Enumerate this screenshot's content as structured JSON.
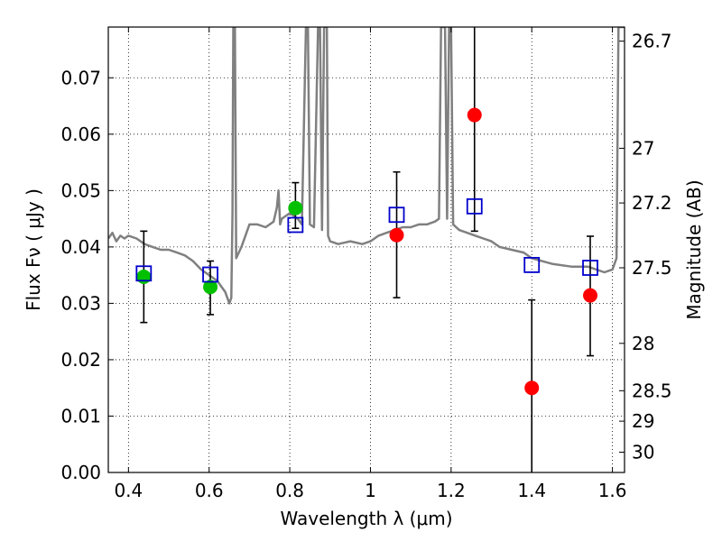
{
  "chart_data": {
    "type": "scatter",
    "xlabel": "Wavelength  λ (μm)",
    "ylabel": "Flux  Fν  ( μJy )",
    "ylabel_right": "Magnitude (AB)",
    "xlim": [
      0.35,
      1.63
    ],
    "ylim": [
      0.0,
      0.079
    ],
    "grid": true,
    "x_ticks": [
      0.4,
      0.6,
      0.8,
      1.0,
      1.2,
      1.4,
      1.6
    ],
    "x_tick_labels": [
      "0.4",
      "0.6",
      "0.8",
      "1",
      "1.2",
      "1.4",
      "1.6"
    ],
    "y_ticks": [
      0.0,
      0.01,
      0.02,
      0.03,
      0.04,
      0.05,
      0.06,
      0.07
    ],
    "y_tick_labels": [
      "0.00",
      "0.01",
      "0.02",
      "0.03",
      "0.04",
      "0.05",
      "0.06",
      "0.07"
    ],
    "mag_ticks": [
      {
        "label": "26.7",
        "flux": 0.0765
      },
      {
        "label": "27",
        "flux": 0.0575
      },
      {
        "label": "27.2",
        "flux": 0.0478
      },
      {
        "label": "27.5",
        "flux": 0.0363
      },
      {
        "label": "28",
        "flux": 0.0229
      },
      {
        "label": "28.5",
        "flux": 0.0145
      },
      {
        "label": "29",
        "flux": 0.0091
      },
      {
        "label": "30",
        "flux": 0.0036
      }
    ],
    "series": [
      {
        "kind": "line",
        "color": "#808080",
        "points": [
          [
            0.35,
            0.0415
          ],
          [
            0.36,
            0.0425
          ],
          [
            0.37,
            0.041
          ],
          [
            0.38,
            0.042
          ],
          [
            0.39,
            0.0415
          ],
          [
            0.4,
            0.042
          ],
          [
            0.42,
            0.0415
          ],
          [
            0.44,
            0.0405
          ],
          [
            0.46,
            0.04
          ],
          [
            0.48,
            0.0395
          ],
          [
            0.5,
            0.0395
          ],
          [
            0.52,
            0.039
          ],
          [
            0.54,
            0.0385
          ],
          [
            0.56,
            0.0375
          ],
          [
            0.58,
            0.036
          ],
          [
            0.6,
            0.035
          ],
          [
            0.62,
            0.034
          ],
          [
            0.63,
            0.033
          ],
          [
            0.64,
            0.032
          ],
          [
            0.65,
            0.03
          ],
          [
            0.655,
            0.031
          ],
          [
            0.658,
            0.046
          ],
          [
            0.66,
            0.079
          ],
          [
            0.664,
            0.079
          ],
          [
            0.667,
            0.038
          ],
          [
            0.68,
            0.04
          ],
          [
            0.7,
            0.044
          ],
          [
            0.72,
            0.044
          ],
          [
            0.74,
            0.0435
          ],
          [
            0.75,
            0.044
          ],
          [
            0.76,
            0.0445
          ],
          [
            0.768,
            0.047
          ],
          [
            0.772,
            0.05
          ],
          [
            0.776,
            0.044
          ],
          [
            0.78,
            0.045
          ],
          [
            0.8,
            0.046
          ],
          [
            0.82,
            0.045
          ],
          [
            0.83,
            0.044
          ],
          [
            0.84,
            0.079
          ],
          [
            0.845,
            0.079
          ],
          [
            0.85,
            0.044
          ],
          [
            0.86,
            0.0435
          ],
          [
            0.87,
            0.079
          ],
          [
            0.875,
            0.079
          ],
          [
            0.88,
            0.043
          ],
          [
            0.885,
            0.079
          ],
          [
            0.892,
            0.079
          ],
          [
            0.895,
            0.042
          ],
          [
            0.9,
            0.041
          ],
          [
            0.92,
            0.0405
          ],
          [
            0.95,
            0.041
          ],
          [
            0.98,
            0.0405
          ],
          [
            1.0,
            0.041
          ],
          [
            1.02,
            0.042
          ],
          [
            1.04,
            0.0425
          ],
          [
            1.06,
            0.043
          ],
          [
            1.08,
            0.0435
          ],
          [
            1.1,
            0.0435
          ],
          [
            1.12,
            0.044
          ],
          [
            1.14,
            0.044
          ],
          [
            1.16,
            0.0445
          ],
          [
            1.17,
            0.045
          ],
          [
            1.175,
            0.079
          ],
          [
            1.185,
            0.079
          ],
          [
            1.19,
            0.045
          ],
          [
            1.195,
            0.079
          ],
          [
            1.2,
            0.079
          ],
          [
            1.205,
            0.044
          ],
          [
            1.22,
            0.043
          ],
          [
            1.24,
            0.0425
          ],
          [
            1.26,
            0.042
          ],
          [
            1.28,
            0.0415
          ],
          [
            1.3,
            0.041
          ],
          [
            1.32,
            0.04
          ],
          [
            1.35,
            0.0395
          ],
          [
            1.38,
            0.039
          ],
          [
            1.4,
            0.038
          ],
          [
            1.45,
            0.037
          ],
          [
            1.5,
            0.0365
          ],
          [
            1.52,
            0.0365
          ],
          [
            1.54,
            0.0365
          ],
          [
            1.56,
            0.036
          ],
          [
            1.58,
            0.0355
          ],
          [
            1.6,
            0.036
          ],
          [
            1.61,
            0.038
          ],
          [
            1.615,
            0.079
          ],
          [
            1.62,
            0.079
          ],
          [
            1.63,
            0.079
          ]
        ]
      },
      {
        "kind": "scatter",
        "marker": "circle",
        "color": "#00c000",
        "points": [
          [
            0.438,
            0.0347
          ],
          [
            0.603,
            0.0329
          ],
          [
            0.814,
            0.0469
          ]
        ]
      },
      {
        "kind": "scatter",
        "marker": "circle",
        "color": "#ff0000",
        "points": [
          [
            1.065,
            0.0421
          ],
          [
            1.258,
            0.0634
          ],
          [
            1.4,
            0.015
          ],
          [
            1.545,
            0.0314
          ]
        ]
      },
      {
        "kind": "errorbar",
        "color": "#000000",
        "bars": [
          {
            "x": 0.438,
            "low": 0.0266,
            "high": 0.0428
          },
          {
            "x": 0.603,
            "low": 0.028,
            "high": 0.0375
          },
          {
            "x": 0.814,
            "low": 0.0433,
            "high": 0.0514
          },
          {
            "x": 1.065,
            "low": 0.031,
            "high": 0.0533
          },
          {
            "x": 1.258,
            "low": 0.0428,
            "high": 0.079
          },
          {
            "x": 1.4,
            "low": 0.0,
            "high": 0.0306
          },
          {
            "x": 1.545,
            "low": 0.0207,
            "high": 0.0419
          }
        ]
      },
      {
        "kind": "scatter",
        "marker": "open-square",
        "color": "#0000cc",
        "points": [
          [
            0.438,
            0.0353
          ],
          [
            0.603,
            0.0351
          ],
          [
            0.814,
            0.0439
          ],
          [
            1.065,
            0.0457
          ],
          [
            1.258,
            0.0472
          ],
          [
            1.4,
            0.0368
          ],
          [
            1.545,
            0.0363
          ]
        ]
      }
    ]
  }
}
